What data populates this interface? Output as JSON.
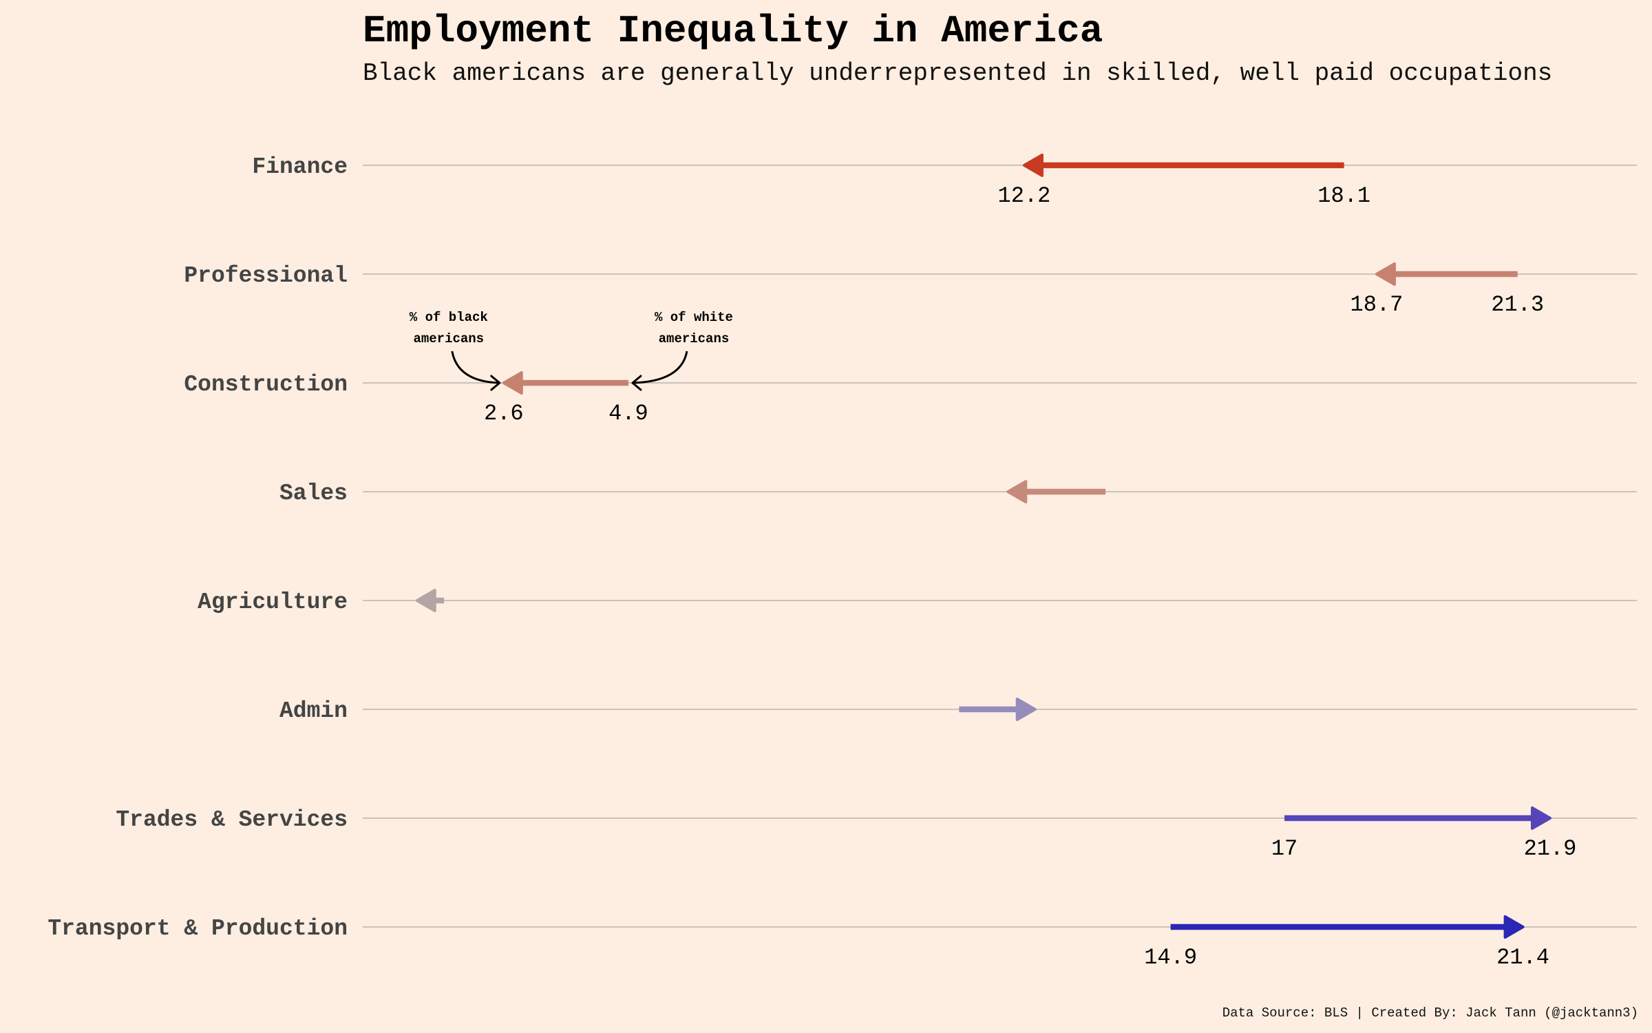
{
  "chart_data": {
    "type": "arrow",
    "title": "Employment Inequality in America",
    "subtitle": "Black americans are generally underrepresented in skilled, well paid occupations",
    "caption": "Data Source: BLS | Created By: Jack Tann (@jacktann3)",
    "xlim": [
      0,
      23.5
    ],
    "grid": "horizontal",
    "categories": [
      "Finance",
      "Professional",
      "Construction",
      "Sales",
      "Agriculture",
      "Admin",
      "Trades & Services",
      "Transport & Production"
    ],
    "series": [
      {
        "name": "% of white americans",
        "values": [
          18.1,
          21.3,
          4.9,
          13.7,
          1.5,
          11.0,
          17.0,
          14.9
        ]
      },
      {
        "name": "% of black americans",
        "values": [
          12.2,
          18.7,
          2.6,
          11.9,
          1.0,
          12.4,
          21.9,
          21.4
        ]
      }
    ],
    "labels_white": [
      "18.1",
      "21.3",
      "4.9",
      "",
      "",
      "",
      "17",
      "14.9"
    ],
    "labels_black": [
      "12.2",
      "18.7",
      "2.6",
      "",
      "",
      "",
      "21.9",
      "21.4"
    ],
    "arrow_colors": [
      "#C93A22",
      "#C68270",
      "#C68270",
      "#C68A7C",
      "#B3A5A5",
      "#958CBB",
      "#5545B8",
      "#2A27B5"
    ],
    "annotations": [
      {
        "category": "Construction",
        "series": "black",
        "lines": [
          "% of black",
          "americans"
        ]
      },
      {
        "category": "Construction",
        "series": "white",
        "lines": [
          "% of white",
          "americans"
        ]
      }
    ]
  }
}
